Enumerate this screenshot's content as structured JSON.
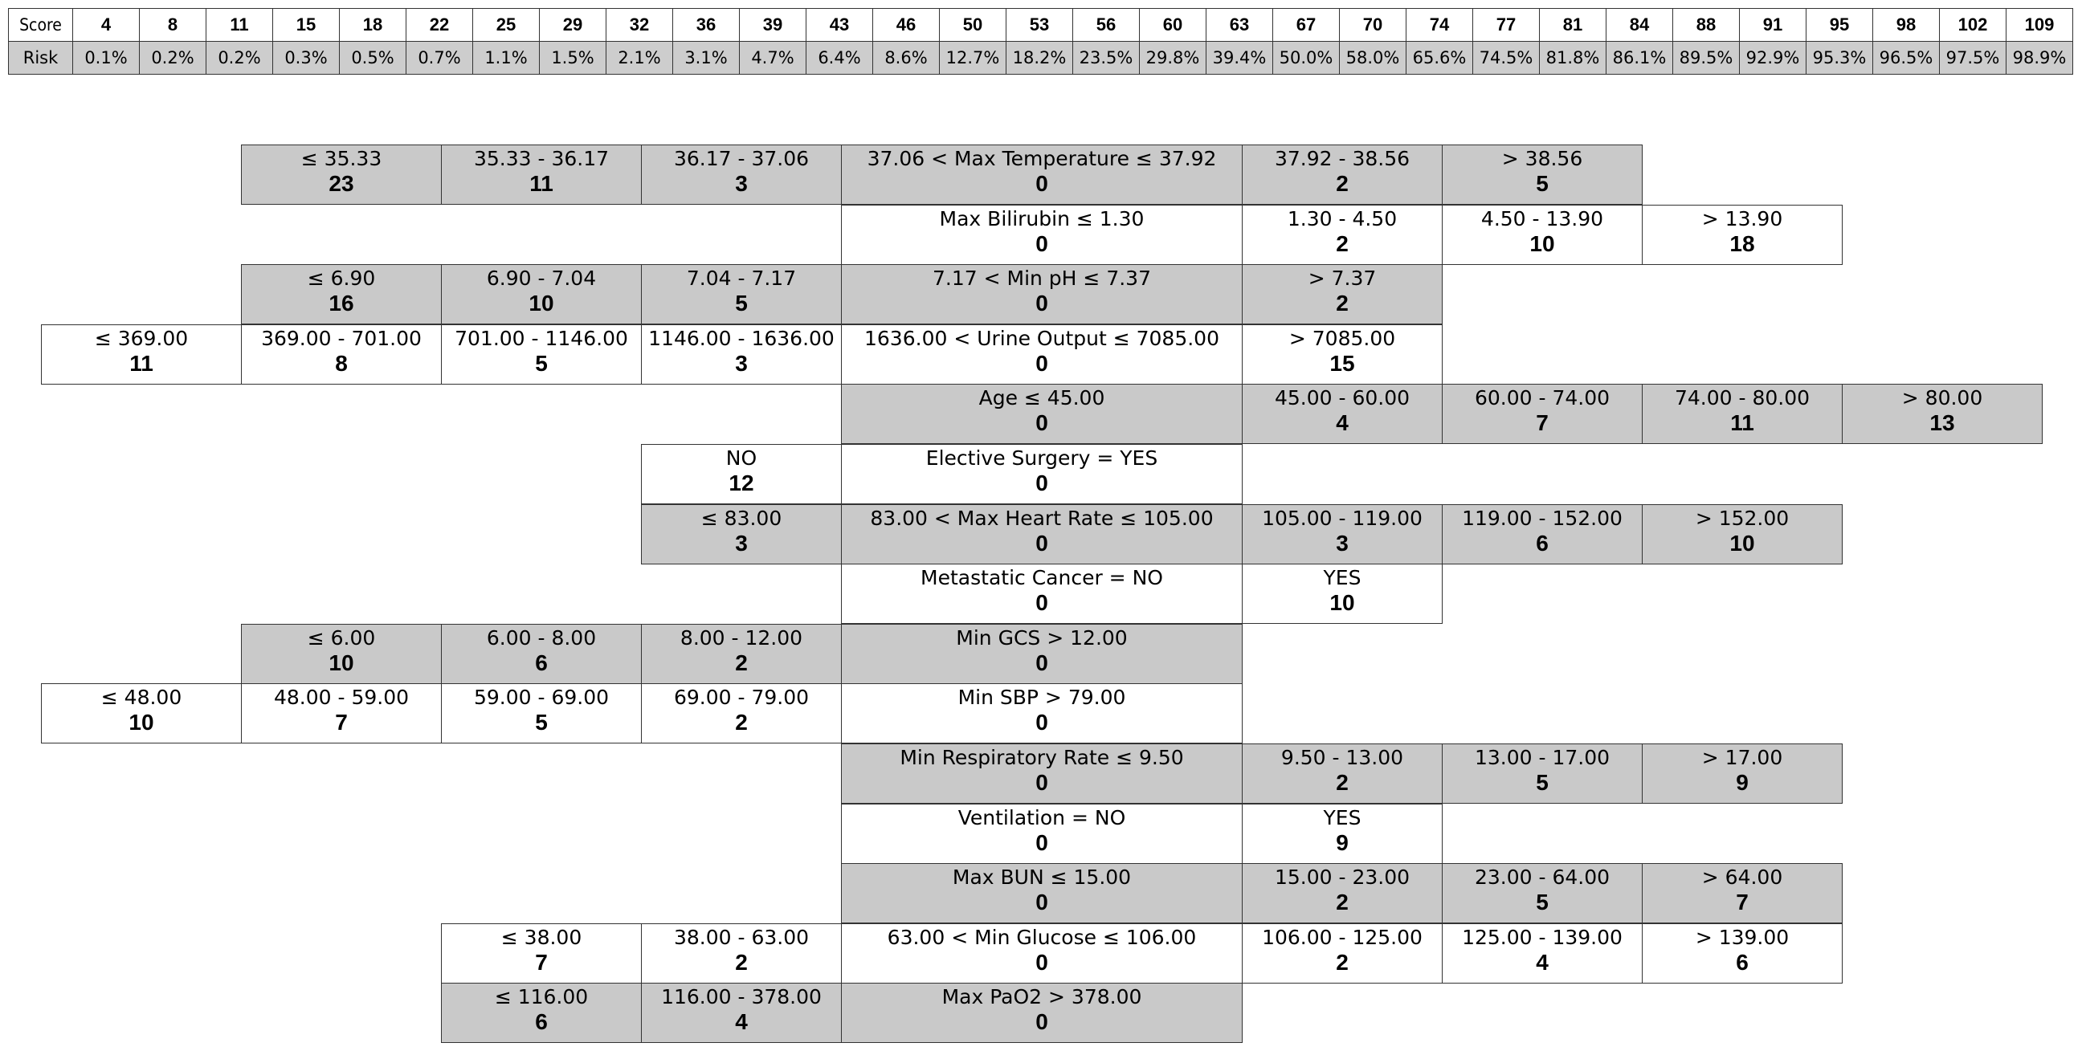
{
  "risk_table": {
    "score_label": "Score",
    "risk_label": "Risk",
    "scores": [
      "4",
      "8",
      "11",
      "15",
      "18",
      "22",
      "25",
      "29",
      "32",
      "36",
      "39",
      "43",
      "46",
      "50",
      "53",
      "56",
      "60",
      "63",
      "67",
      "70",
      "74",
      "77",
      "81",
      "84",
      "88",
      "91",
      "95",
      "98",
      "102",
      "109"
    ],
    "risks": [
      "0.1%",
      "0.2%",
      "0.2%",
      "0.3%",
      "0.5%",
      "0.7%",
      "1.1%",
      "1.5%",
      "2.1%",
      "3.1%",
      "4.7%",
      "6.4%",
      "8.6%",
      "12.7%",
      "18.2%",
      "23.5%",
      "29.8%",
      "39.4%",
      "50.0%",
      "58.0%",
      "65.6%",
      "74.5%",
      "81.8%",
      "86.1%",
      "89.5%",
      "92.9%",
      "95.3%",
      "96.5%",
      "97.5%",
      "98.9%"
    ]
  },
  "features": [
    {
      "name": "max-temperature",
      "left": [
        [
          "≤ 35.33",
          "23"
        ],
        [
          "35.33 - 36.17",
          "11"
        ],
        [
          "36.17 - 37.06",
          "3"
        ]
      ],
      "reference": [
        "37.06 < Max Temperature ≤ 37.92",
        "0"
      ],
      "right": [
        [
          "37.92 - 38.56",
          "2"
        ],
        [
          "> 38.56",
          "5"
        ]
      ]
    },
    {
      "name": "max-bilirubin",
      "left": [],
      "reference": [
        "Max Bilirubin ≤ 1.30",
        "0"
      ],
      "right": [
        [
          "1.30 - 4.50",
          "2"
        ],
        [
          "4.50 - 13.90",
          "10"
        ],
        [
          "> 13.90",
          "18"
        ]
      ]
    },
    {
      "name": "min-ph",
      "left": [
        [
          "≤ 6.90",
          "16"
        ],
        [
          "6.90 - 7.04",
          "10"
        ],
        [
          "7.04 - 7.17",
          "5"
        ]
      ],
      "reference": [
        "7.17 < Min pH ≤ 7.37",
        "0"
      ],
      "right": [
        [
          "> 7.37",
          "2"
        ]
      ]
    },
    {
      "name": "urine-output",
      "left": [
        [
          "≤ 369.00",
          "11"
        ],
        [
          "369.00 - 701.00",
          "8"
        ],
        [
          "701.00 - 1146.00",
          "5"
        ],
        [
          "1146.00 - 1636.00",
          "3"
        ]
      ],
      "reference": [
        "1636.00 < Urine Output ≤ 7085.00",
        "0"
      ],
      "right": [
        [
          "> 7085.00",
          "15"
        ]
      ]
    },
    {
      "name": "age",
      "left": [],
      "reference": [
        "Age ≤ 45.00",
        "0"
      ],
      "right": [
        [
          "45.00 - 60.00",
          "4"
        ],
        [
          "60.00 - 74.00",
          "7"
        ],
        [
          "74.00 - 80.00",
          "11"
        ],
        [
          "> 80.00",
          "13"
        ]
      ]
    },
    {
      "name": "elective-surgery",
      "left": [
        [
          "NO",
          "12"
        ]
      ],
      "reference": [
        "Elective Surgery = YES",
        "0"
      ],
      "right": []
    },
    {
      "name": "max-heart-rate",
      "left": [
        [
          "≤ 83.00",
          "3"
        ]
      ],
      "reference": [
        "83.00 < Max Heart Rate ≤ 105.00",
        "0"
      ],
      "right": [
        [
          "105.00 - 119.00",
          "3"
        ],
        [
          "119.00 - 152.00",
          "6"
        ],
        [
          "> 152.00",
          "10"
        ]
      ]
    },
    {
      "name": "metastatic-cancer",
      "left": [],
      "reference": [
        "Metastatic Cancer = NO",
        "0"
      ],
      "right": [
        [
          "YES",
          "10"
        ]
      ]
    },
    {
      "name": "min-gcs",
      "left": [
        [
          "≤ 6.00",
          "10"
        ],
        [
          "6.00 - 8.00",
          "6"
        ],
        [
          "8.00 - 12.00",
          "2"
        ]
      ],
      "reference": [
        "Min GCS > 12.00",
        "0"
      ],
      "right": []
    },
    {
      "name": "min-sbp",
      "left": [
        [
          "≤ 48.00",
          "10"
        ],
        [
          "48.00 - 59.00",
          "7"
        ],
        [
          "59.00 - 69.00",
          "5"
        ],
        [
          "69.00 - 79.00",
          "2"
        ]
      ],
      "reference": [
        "Min SBP > 79.00",
        "0"
      ],
      "right": []
    },
    {
      "name": "min-respiratory-rate",
      "left": [],
      "reference": [
        "Min Respiratory Rate ≤ 9.50",
        "0"
      ],
      "right": [
        [
          "9.50 - 13.00",
          "2"
        ],
        [
          "13.00 - 17.00",
          "5"
        ],
        [
          "> 17.00",
          "9"
        ]
      ]
    },
    {
      "name": "ventilation",
      "left": [],
      "reference": [
        "Ventilation = NO",
        "0"
      ],
      "right": [
        [
          "YES",
          "9"
        ]
      ]
    },
    {
      "name": "max-bun",
      "left": [],
      "reference": [
        "Max BUN ≤ 15.00",
        "0"
      ],
      "right": [
        [
          "15.00 - 23.00",
          "2"
        ],
        [
          "23.00 - 64.00",
          "5"
        ],
        [
          "> 64.00",
          "7"
        ]
      ]
    },
    {
      "name": "min-glucose",
      "left": [
        [
          "≤ 38.00",
          "7"
        ],
        [
          "38.00 - 63.00",
          "2"
        ]
      ],
      "reference": [
        "63.00 < Min Glucose ≤ 106.00",
        "0"
      ],
      "right": [
        [
          "106.00 - 125.00",
          "2"
        ],
        [
          "125.00 - 139.00",
          "4"
        ],
        [
          "> 139.00",
          "6"
        ]
      ]
    },
    {
      "name": "max-pao2",
      "left": [
        [
          "≤ 116.00",
          "6"
        ],
        [
          "116.00 - 378.00",
          "4"
        ]
      ],
      "reference": [
        "Max PaO2 > 378.00",
        "0"
      ],
      "right": []
    }
  ]
}
